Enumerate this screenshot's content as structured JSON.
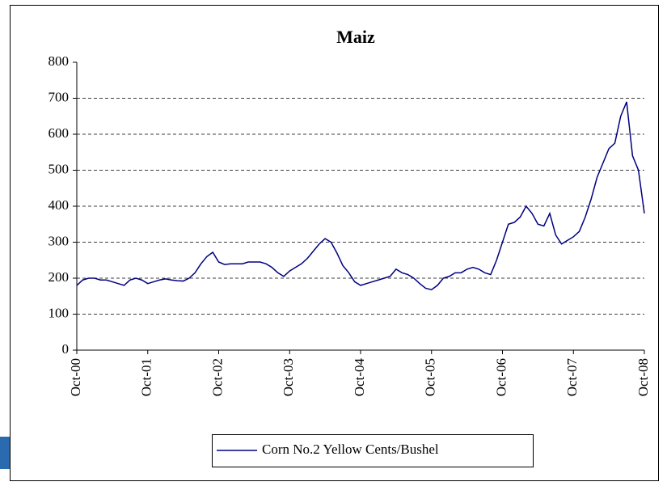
{
  "chart_data": {
    "type": "line",
    "title": "Maiz",
    "categories": [
      "Oct-00",
      null,
      null,
      null,
      null,
      null,
      null,
      null,
      null,
      null,
      null,
      null,
      "Oct-01",
      null,
      null,
      null,
      null,
      null,
      null,
      null,
      null,
      null,
      null,
      null,
      "Oct-02",
      null,
      null,
      null,
      null,
      null,
      null,
      null,
      null,
      null,
      null,
      null,
      "Oct-03",
      null,
      null,
      null,
      null,
      null,
      null,
      null,
      null,
      null,
      null,
      null,
      "Oct-04",
      null,
      null,
      null,
      null,
      null,
      null,
      null,
      null,
      null,
      null,
      null,
      "Oct-05",
      null,
      null,
      null,
      null,
      null,
      null,
      null,
      null,
      null,
      null,
      null,
      "Oct-06",
      null,
      null,
      null,
      null,
      null,
      null,
      null,
      null,
      null,
      null,
      null,
      "Oct-07",
      null,
      null,
      null,
      null,
      null,
      null,
      null,
      null,
      null,
      null,
      null,
      "Oct-08"
    ],
    "series": [
      {
        "name": "Corn No.2 Yellow Cents/Bushel",
        "color": "#000080",
        "values": [
          180,
          195,
          200,
          200,
          195,
          195,
          190,
          185,
          180,
          195,
          200,
          195,
          185,
          190,
          195,
          198,
          195,
          193,
          192,
          200,
          215,
          240,
          260,
          272,
          245,
          238,
          240,
          240,
          240,
          245,
          245,
          245,
          240,
          230,
          215,
          205,
          220,
          230,
          240,
          255,
          275,
          295,
          310,
          300,
          270,
          235,
          215,
          190,
          180,
          185,
          190,
          195,
          200,
          205,
          225,
          215,
          210,
          200,
          185,
          172,
          168,
          180,
          200,
          205,
          215,
          215,
          225,
          230,
          225,
          215,
          210,
          250,
          300,
          350,
          355,
          370,
          400,
          380,
          350,
          345,
          380,
          320,
          295,
          305,
          315,
          330,
          370,
          420,
          480,
          520,
          560,
          575,
          650,
          690,
          540,
          500,
          380
        ]
      }
    ],
    "ylim": [
      0,
      800
    ],
    "yticks": [
      0,
      100,
      200,
      300,
      400,
      500,
      600,
      700,
      800
    ],
    "grid": true,
    "legend": "bottom"
  }
}
